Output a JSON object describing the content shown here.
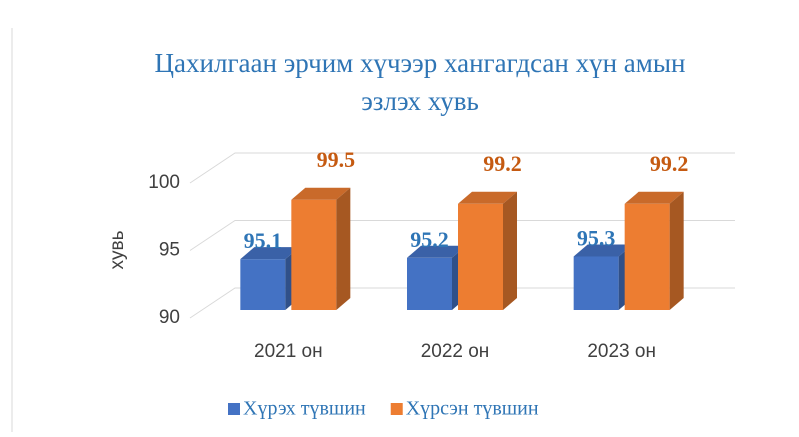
{
  "chart_data": {
    "type": "bar3d",
    "title": "Цахилгаан эрчим хүчээр хангагдсан хүн амын эзлэх хувь",
    "ylabel": "хувь",
    "categories": [
      "2021 он",
      "2022 он",
      "2023 он"
    ],
    "series": [
      {
        "name": "Хүрэх түвшин",
        "color": "#4472c4",
        "label_color": "#2e75b6",
        "values": [
          95.1,
          95.2,
          95.3
        ]
      },
      {
        "name": "Хүрсэн түвшин",
        "color": "#ed7d31",
        "label_color": "#c55a11",
        "values": [
          99.5,
          99.2,
          99.2
        ]
      }
    ],
    "ylim": [
      90,
      100
    ],
    "yticks": [
      90,
      95,
      100
    ],
    "grid": true,
    "legend": "bottom"
  }
}
